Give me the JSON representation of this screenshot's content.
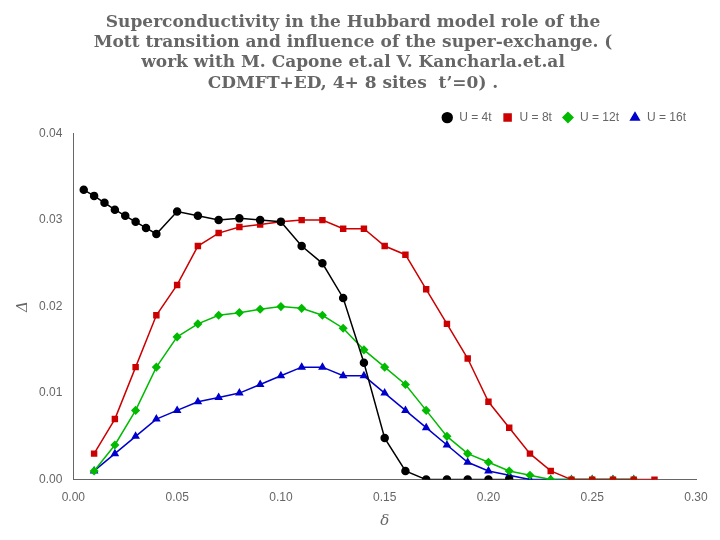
{
  "chart_data": {
    "type": "line",
    "title": [
      "Superconductivity in the Hubbard model role of the",
      "Mott transition and influence of the super-exchange. (",
      "work with M. Capone et.al V. Kancharla.et.al",
      "CDMFT+ED, 4+ 8 sites  t’=0) ."
    ],
    "x_label": "δ",
    "y_label": "Δ",
    "xlim": [
      0,
      0.3
    ],
    "ylim": [
      0,
      0.04
    ],
    "xticks": [
      {
        "value": 0,
        "label": "0.00"
      },
      {
        "value": 0.05,
        "label": "0.05"
      },
      {
        "value": 0.1,
        "label": "0.10"
      },
      {
        "value": 0.15,
        "label": "0.15"
      },
      {
        "value": 0.2,
        "label": "0.20"
      },
      {
        "value": 0.25,
        "label": "0.25"
      },
      {
        "value": 0.3,
        "label": "0.30"
      }
    ],
    "yticks": [
      {
        "value": 0,
        "label": "0.00"
      },
      {
        "value": 0.01,
        "label": "0.01"
      },
      {
        "value": 0.02,
        "label": "0.02"
      },
      {
        "value": 0.03,
        "label": "0.03"
      },
      {
        "value": 0.04,
        "label": "0.04"
      }
    ],
    "grid": false,
    "legend": "upper right",
    "series": [
      {
        "name": "U = 4t",
        "color": "#000000",
        "marker": "circle",
        "x": [
          0.005,
          0.01,
          0.015,
          0.02,
          0.025,
          0.03,
          0.035,
          0.04,
          0.05,
          0.06,
          0.07,
          0.08,
          0.09,
          0.1,
          0.11,
          0.12,
          0.13,
          0.14,
          0.15,
          0.16,
          0.17,
          0.18,
          0.19,
          0.2,
          0.21
        ],
        "values": [
          0.0335,
          0.0328,
          0.032,
          0.0312,
          0.0305,
          0.0298,
          0.0291,
          0.0284,
          0.031,
          0.0305,
          0.03,
          0.0302,
          0.03,
          0.0298,
          0.027,
          0.025,
          0.021,
          0.0135,
          0.0048,
          0.001,
          0.0,
          0.0,
          0.0,
          0.0,
          0.0
        ]
      },
      {
        "name": "U = 8t",
        "color": "#cc0000",
        "marker": "square",
        "x": [
          0.01,
          0.02,
          0.03,
          0.04,
          0.05,
          0.06,
          0.07,
          0.08,
          0.09,
          0.1,
          0.11,
          0.12,
          0.13,
          0.14,
          0.15,
          0.16,
          0.17,
          0.18,
          0.19,
          0.2,
          0.21,
          0.22,
          0.23,
          0.24,
          0.25,
          0.26,
          0.27,
          0.28
        ],
        "values": [
          0.003,
          0.007,
          0.013,
          0.019,
          0.0225,
          0.027,
          0.0285,
          0.0292,
          0.0295,
          0.0298,
          0.03,
          0.03,
          0.029,
          0.029,
          0.027,
          0.026,
          0.022,
          0.018,
          0.014,
          0.009,
          0.006,
          0.003,
          0.001,
          0.0,
          0.0,
          0.0,
          0.0,
          0.0
        ]
      },
      {
        "name": "U = 12t",
        "color": "#00bb00",
        "marker": "diamond",
        "x": [
          0.01,
          0.02,
          0.03,
          0.04,
          0.05,
          0.06,
          0.07,
          0.08,
          0.09,
          0.1,
          0.11,
          0.12,
          0.13,
          0.14,
          0.15,
          0.16,
          0.17,
          0.18,
          0.19,
          0.2,
          0.21,
          0.22,
          0.23,
          0.24,
          0.25,
          0.26,
          0.27
        ],
        "values": [
          0.001,
          0.004,
          0.008,
          0.013,
          0.0165,
          0.018,
          0.019,
          0.0193,
          0.0197,
          0.02,
          0.0198,
          0.019,
          0.0175,
          0.015,
          0.013,
          0.011,
          0.008,
          0.005,
          0.003,
          0.002,
          0.001,
          0.0005,
          0.0,
          0.0,
          0.0,
          0.0,
          0.0
        ]
      },
      {
        "name": "U = 16t",
        "color": "#0000cc",
        "marker": "triangle",
        "x": [
          0.01,
          0.02,
          0.03,
          0.04,
          0.05,
          0.06,
          0.07,
          0.08,
          0.09,
          0.1,
          0.11,
          0.12,
          0.13,
          0.14,
          0.15,
          0.16,
          0.17,
          0.18,
          0.19,
          0.2,
          0.21,
          0.22,
          0.23,
          0.24,
          0.25,
          0.26,
          0.27
        ],
        "values": [
          0.001,
          0.003,
          0.005,
          0.007,
          0.008,
          0.009,
          0.0095,
          0.01,
          0.011,
          0.012,
          0.013,
          0.013,
          0.012,
          0.012,
          0.01,
          0.008,
          0.006,
          0.004,
          0.002,
          0.001,
          0.0005,
          0.0,
          0.0,
          0.0,
          0.0,
          0.0,
          0.0
        ]
      }
    ]
  }
}
